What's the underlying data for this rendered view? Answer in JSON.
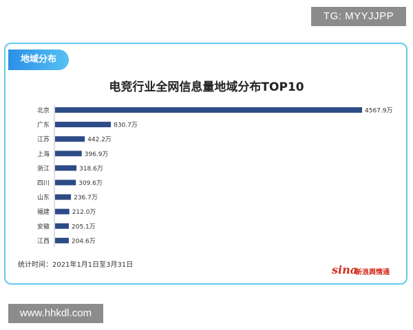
{
  "watermarks": {
    "top": "TG: MYYJJPP",
    "bottom": "www.hhkdl.com"
  },
  "card": {
    "tag": "地域分布",
    "footnote": "统计时间：2021年1月1日至3月31日",
    "logo_mark": "sina",
    "logo_text": "新浪舆情通"
  },
  "colors": {
    "bar": "#2d4b85",
    "border": "#63c8ec",
    "logo": "#d42b1e"
  },
  "chart_data": {
    "type": "bar",
    "orientation": "horizontal",
    "title": "电竞行业全网信息量地域分布TOP10",
    "categories": [
      "北京",
      "广东",
      "江苏",
      "上海",
      "浙江",
      "四川",
      "山东",
      "福建",
      "安徽",
      "江西"
    ],
    "values": [
      4567.9,
      830.7,
      442.2,
      396.9,
      318.6,
      309.6,
      236.7,
      212.0,
      205.1,
      204.6
    ],
    "value_labels": [
      "4567.9万",
      "830.7万",
      "442.2万",
      "396.9万",
      "318.6万",
      "309.6万",
      "236.7万",
      "212.0万",
      "205.1万",
      "204.6万"
    ],
    "unit": "万",
    "xlim": [
      0,
      4567.9
    ],
    "xlabel": "",
    "ylabel": "",
    "grid": false,
    "legend": "none"
  }
}
